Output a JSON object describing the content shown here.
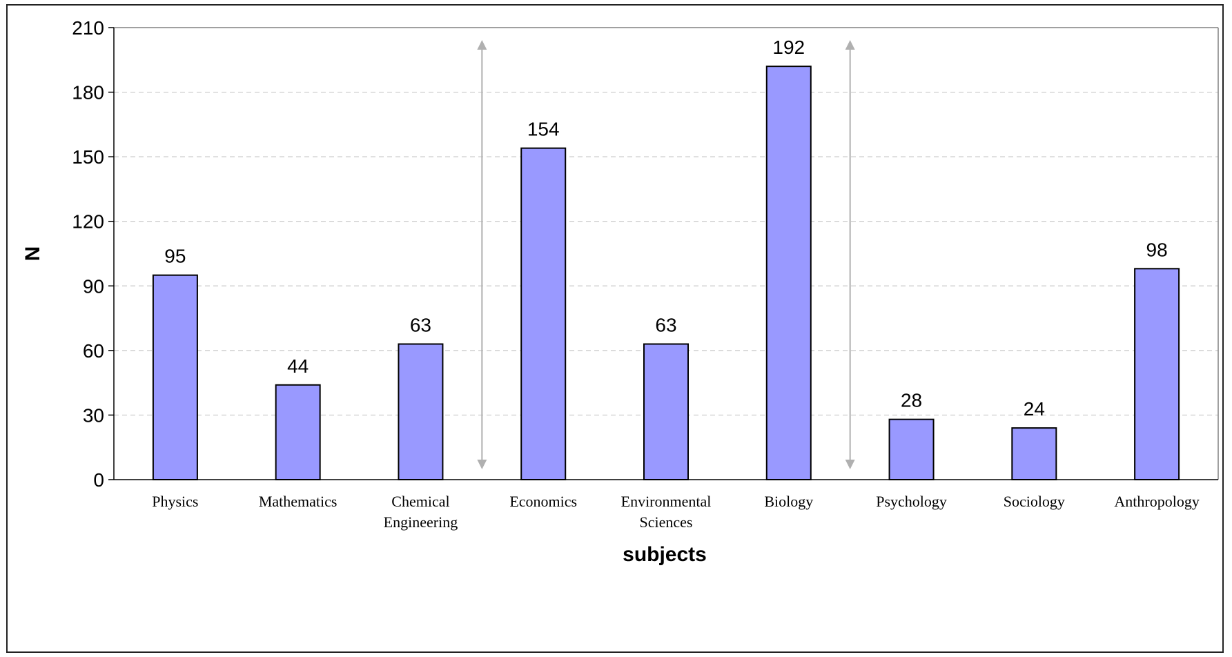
{
  "chart_data": {
    "type": "bar",
    "categories": [
      [
        "Physics"
      ],
      [
        "Mathematics"
      ],
      [
        "Chemical",
        "Engineering"
      ],
      [
        "Economics"
      ],
      [
        "Environmental",
        "Sciences"
      ],
      [
        "Biology"
      ],
      [
        "Psychology"
      ],
      [
        "Sociology"
      ],
      [
        "Anthropology"
      ]
    ],
    "values": [
      95,
      44,
      63,
      154,
      63,
      192,
      28,
      24,
      98
    ],
    "data_labels": [
      "95",
      "44",
      "63",
      "154",
      "63",
      "192",
      "28",
      "24",
      "98"
    ],
    "xlabel": "subjects",
    "ylabel": "N",
    "ylim": [
      0,
      210
    ],
    "yticks": [
      0,
      30,
      60,
      90,
      120,
      150,
      180,
      210
    ],
    "grid": "horizontal dashed",
    "legend": "none",
    "separators_after_category_index": [
      2,
      5
    ],
    "colors": {
      "bar_fill": "#9999ff",
      "bar_stroke": "#000000",
      "grid": "#c8c8c8",
      "separator": "#b0b0b0",
      "axis": "#000000"
    }
  }
}
